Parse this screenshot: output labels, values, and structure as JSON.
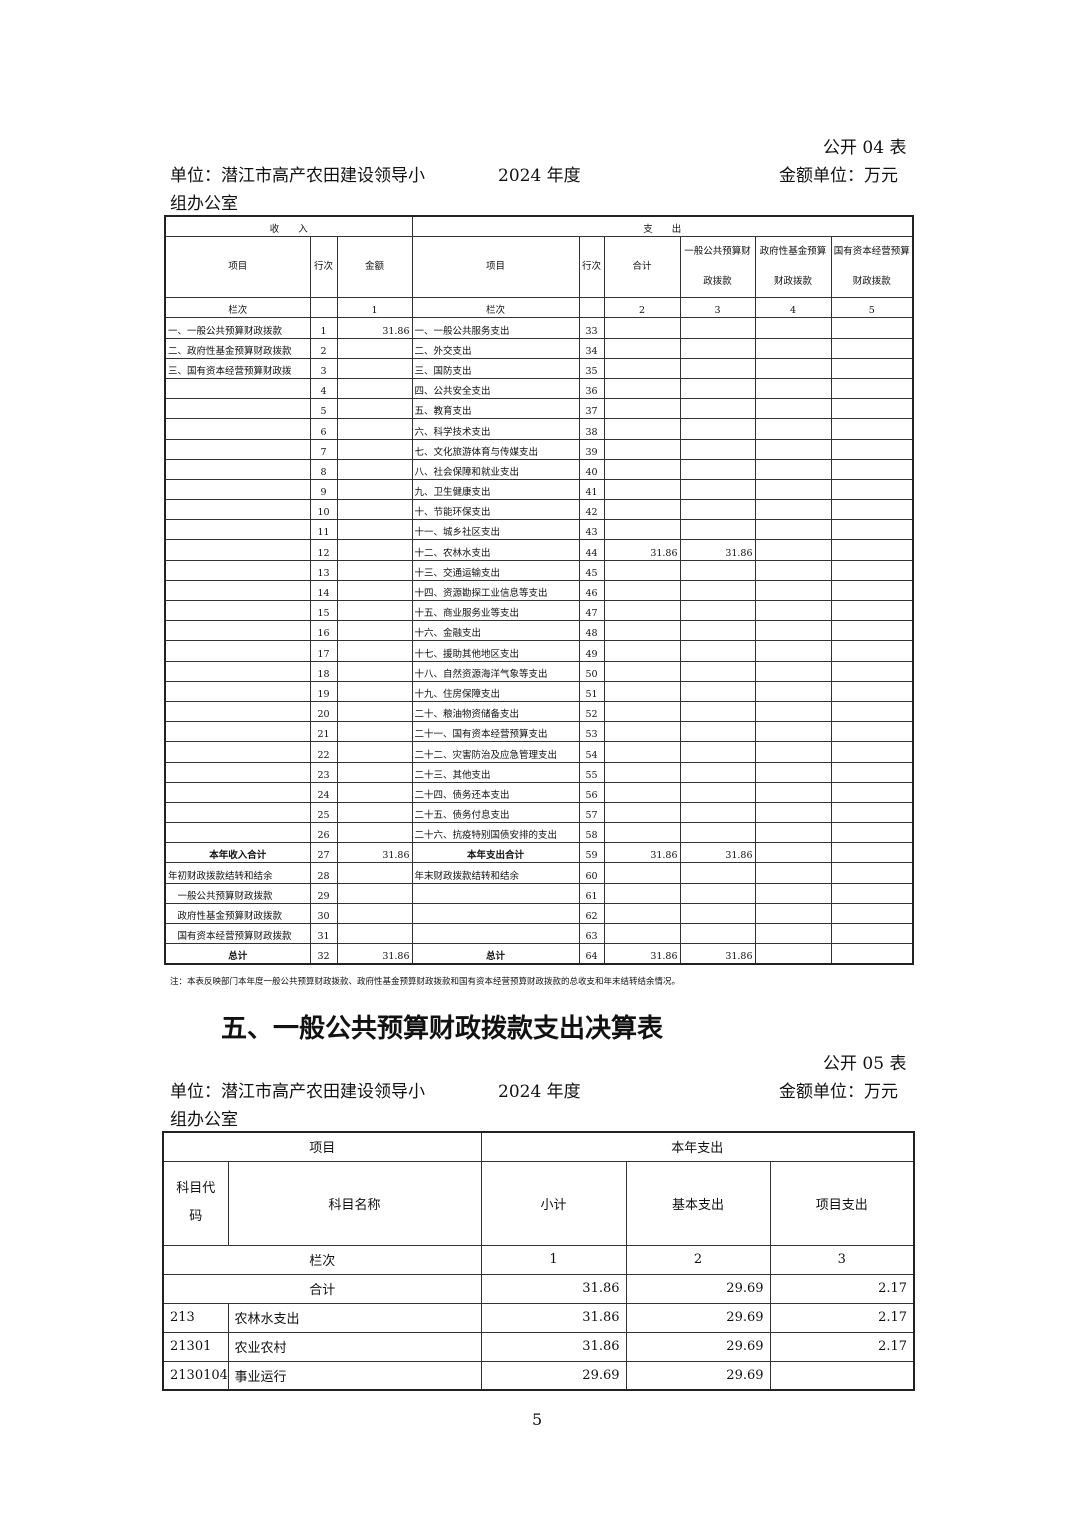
{
  "sec4": {
    "table_no": "公开 04 表",
    "unit": "单位：潜江市高产农田建设领导小",
    "unit2": "组办公室",
    "year": "2024 年度",
    "money_unit": "金额单位：万元",
    "head": {
      "income": "收　　入",
      "expense": "支　　出",
      "item": "项目",
      "line": "行次",
      "amount": "金额",
      "total": "合计",
      "gen": "一般公共预算财政拨款",
      "gov": "政府性基金预算财政拨款",
      "state": "国有资本经营预算财政拨款",
      "col": "栏次",
      "n1": "1",
      "n2": "2",
      "n3": "3",
      "n4": "4",
      "n5": "5"
    },
    "rows": [
      [
        "一、一般公共预算财政拨款",
        "1",
        "31.86",
        "一、一般公共服务支出",
        "33",
        "",
        "",
        "",
        ""
      ],
      [
        "二、政府性基金预算财政拨款",
        "2",
        "",
        "二、外交支出",
        "34",
        "",
        "",
        "",
        ""
      ],
      [
        "三、国有资本经营预算财政拨",
        "3",
        "",
        "三、国防支出",
        "35",
        "",
        "",
        "",
        ""
      ],
      [
        "",
        "4",
        "",
        "四、公共安全支出",
        "36",
        "",
        "",
        "",
        ""
      ],
      [
        "",
        "5",
        "",
        "五、教育支出",
        "37",
        "",
        "",
        "",
        ""
      ],
      [
        "",
        "6",
        "",
        "六、科学技术支出",
        "38",
        "",
        "",
        "",
        ""
      ],
      [
        "",
        "7",
        "",
        "七、文化旅游体育与传媒支出",
        "39",
        "",
        "",
        "",
        ""
      ],
      [
        "",
        "8",
        "",
        "八、社会保障和就业支出",
        "40",
        "",
        "",
        "",
        ""
      ],
      [
        "",
        "9",
        "",
        "九、卫生健康支出",
        "41",
        "",
        "",
        "",
        ""
      ],
      [
        "",
        "10",
        "",
        "十、节能环保支出",
        "42",
        "",
        "",
        "",
        ""
      ],
      [
        "",
        "11",
        "",
        "十一、城乡社区支出",
        "43",
        "",
        "",
        "",
        ""
      ],
      [
        "",
        "12",
        "",
        "十二、农林水支出",
        "44",
        "31.86",
        "31.86",
        "",
        ""
      ],
      [
        "",
        "13",
        "",
        "十三、交通运输支出",
        "45",
        "",
        "",
        "",
        ""
      ],
      [
        "",
        "14",
        "",
        "十四、资源勘探工业信息等支出",
        "46",
        "",
        "",
        "",
        ""
      ],
      [
        "",
        "15",
        "",
        "十五、商业服务业等支出",
        "47",
        "",
        "",
        "",
        ""
      ],
      [
        "",
        "16",
        "",
        "十六、金融支出",
        "48",
        "",
        "",
        "",
        ""
      ],
      [
        "",
        "17",
        "",
        "十七、援助其他地区支出",
        "49",
        "",
        "",
        "",
        ""
      ],
      [
        "",
        "18",
        "",
        "十八、自然资源海洋气象等支出",
        "50",
        "",
        "",
        "",
        ""
      ],
      [
        "",
        "19",
        "",
        "十九、住房保障支出",
        "51",
        "",
        "",
        "",
        ""
      ],
      [
        "",
        "20",
        "",
        "二十、粮油物资储备支出",
        "52",
        "",
        "",
        "",
        ""
      ],
      [
        "",
        "21",
        "",
        "二十一、国有资本经营预算支出",
        "53",
        "",
        "",
        "",
        ""
      ],
      [
        "",
        "22",
        "",
        "二十二、灾害防治及应急管理支出",
        "54",
        "",
        "",
        "",
        ""
      ],
      [
        "",
        "23",
        "",
        "二十三、其他支出",
        "55",
        "",
        "",
        "",
        ""
      ],
      [
        "",
        "24",
        "",
        "二十四、债务还本支出",
        "56",
        "",
        "",
        "",
        ""
      ],
      [
        "",
        "25",
        "",
        "二十五、债务付息支出",
        "57",
        "",
        "",
        "",
        ""
      ],
      [
        "",
        "26",
        "",
        "二十六、抗疫特别国债安排的支出",
        "58",
        "",
        "",
        "",
        ""
      ],
      [
        "本年收入合计",
        "27",
        "31.86",
        "本年支出合计",
        "59",
        "31.86",
        "31.86",
        "",
        ""
      ],
      [
        "年初财政拨款结转和结余",
        "28",
        "",
        "年末财政拨款结转和结余",
        "60",
        "",
        "",
        "",
        ""
      ],
      [
        "　一般公共预算财政拨款",
        "29",
        "",
        "",
        "61",
        "",
        "",
        "",
        ""
      ],
      [
        "　政府性基金预算财政拨款",
        "30",
        "",
        "",
        "62",
        "",
        "",
        "",
        ""
      ],
      [
        "　国有资本经营预算财政拨款",
        "31",
        "",
        "",
        "63",
        "",
        "",
        "",
        ""
      ],
      [
        "总计",
        "32",
        "31.86",
        "总计",
        "64",
        "31.86",
        "31.86",
        "",
        ""
      ]
    ],
    "note": "注：本表反映部门本年度一般公共预算财政拨款、政府性基金预算财政拨款和国有资本经营预算财政拨款的总收支和年末结转结余情况。"
  },
  "sec5": {
    "title": "五、一般公共预算财政拨款支出决算表",
    "table_no": "公开 05 表",
    "unit": "单位：潜江市高产农田建设领导小",
    "unit2": "组办公室",
    "year": "2024 年度",
    "money_unit": "金额单位：万元",
    "head": {
      "item": "项目",
      "this_year": "本年支出",
      "code": "科目代码",
      "name": "科目名称",
      "subtotal": "小计",
      "basic": "基本支出",
      "project": "项目支出",
      "col": "栏次",
      "n1": "1",
      "n2": "2",
      "n3": "3"
    },
    "total": {
      "label": "合计",
      "subtotal": "31.86",
      "basic": "29.69",
      "project": "2.17"
    },
    "rows": [
      [
        "213",
        "农林水支出",
        "31.86",
        "29.69",
        "2.17"
      ],
      [
        "21301",
        "农业农村",
        "31.86",
        "29.69",
        "2.17"
      ],
      [
        "2130104",
        "事业运行",
        "29.69",
        "29.69",
        ""
      ]
    ]
  },
  "page_number": "5"
}
